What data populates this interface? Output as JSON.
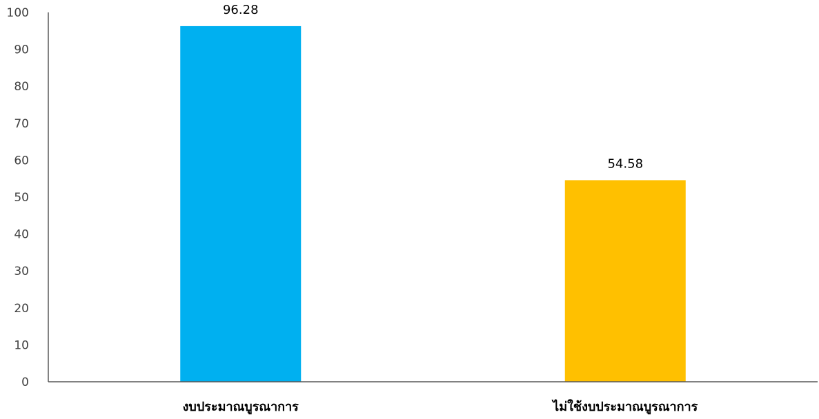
{
  "chart_data": {
    "type": "bar",
    "title": "",
    "xlabel": "",
    "ylabel": "",
    "categories": [
      "งบประมาณบูรณาการ",
      "ไม่ใช้งบประมาณบูรณาการ"
    ],
    "values": [
      96.28,
      54.58
    ],
    "data_labels": [
      "96.28",
      "54.58"
    ],
    "bar_colors": [
      "#00b0f0",
      "#ffc000"
    ],
    "ylim": [
      0,
      100
    ],
    "yticks": [
      0,
      10,
      20,
      30,
      40,
      50,
      60,
      70,
      80,
      90,
      100
    ],
    "grid": false,
    "legend": "none"
  }
}
